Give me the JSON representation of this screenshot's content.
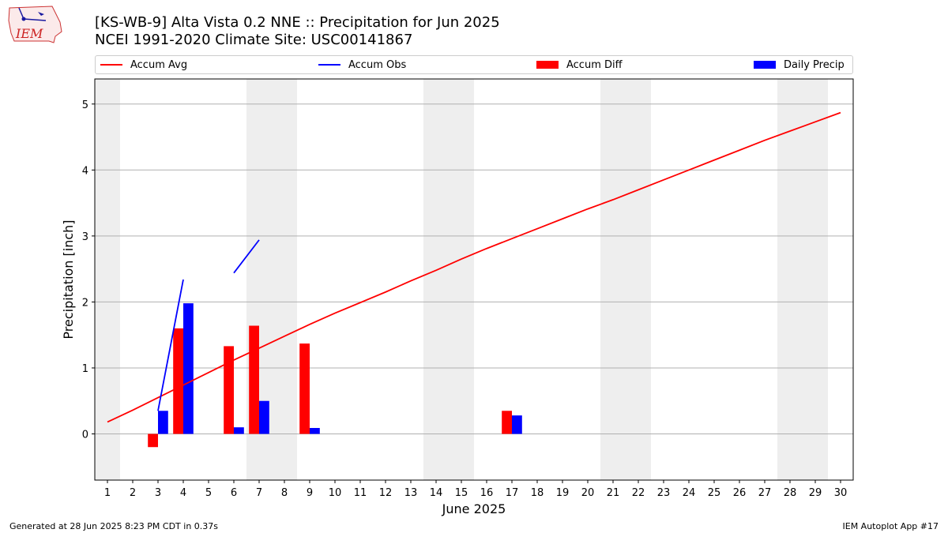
{
  "header": {
    "title_line1": "[KS-WB-9] Alta Vista 0.2 NNE :: Precipitation for Jun 2025",
    "title_line2": "NCEI 1991-2020 Climate Site: USC00141867",
    "logo_text": "IEM"
  },
  "footer": {
    "generated": "Generated at 28 Jun 2025 8:23 PM CDT in 0.37s",
    "app": "IEM Autoplot App #17"
  },
  "colors": {
    "accum_avg": "#ff0000",
    "accum_obs": "#0000ff",
    "accum_diff": "#ff0000",
    "daily_precip": "#0000ff",
    "weekend_shade": "#eeeeee",
    "grid": "#b0b0b0"
  },
  "chart_data": {
    "type": "bar",
    "xlabel": "June 2025",
    "ylabel": "Precipitation [inch]",
    "xlim": [
      0.5,
      30.5
    ],
    "ylim": [
      -0.7,
      5.38
    ],
    "yticks": [
      0,
      1,
      2,
      3,
      4,
      5
    ],
    "grid": "y",
    "legend_placement": "top",
    "legend": [
      "Accum Avg",
      "Accum Obs",
      "Accum Diff",
      "Daily Precip"
    ],
    "days": [
      1,
      2,
      3,
      4,
      5,
      6,
      7,
      8,
      9,
      10,
      11,
      12,
      13,
      14,
      15,
      16,
      17,
      18,
      19,
      20,
      21,
      22,
      23,
      24,
      25,
      26,
      27,
      28,
      29,
      30
    ],
    "weekend_days": [
      1,
      7,
      8,
      14,
      15,
      21,
      22,
      28,
      29
    ],
    "series": [
      {
        "name": "Accum Avg",
        "kind": "line",
        "x": [
          1,
          2,
          3,
          4,
          5,
          6,
          7,
          8,
          9,
          10,
          11,
          12,
          13,
          14,
          15,
          16,
          17,
          18,
          19,
          20,
          21,
          22,
          23,
          24,
          25,
          26,
          27,
          28,
          29,
          30
        ],
        "values": [
          0.18,
          0.36,
          0.55,
          0.74,
          0.93,
          1.12,
          1.3,
          1.48,
          1.66,
          1.83,
          1.99,
          2.15,
          2.32,
          2.48,
          2.65,
          2.81,
          2.96,
          3.11,
          3.26,
          3.41,
          3.55,
          3.7,
          3.85,
          4.0,
          4.15,
          4.3,
          4.45,
          4.59,
          4.73,
          4.87
        ]
      },
      {
        "name": "Accum Obs",
        "kind": "line",
        "segments": [
          {
            "x": [
              3,
              4
            ],
            "values": [
              0.35,
              2.34
            ]
          },
          {
            "x": [
              6,
              7
            ],
            "values": [
              2.44,
              2.94
            ]
          }
        ]
      },
      {
        "name": "Accum Diff",
        "kind": "bar",
        "x": [
          3,
          4,
          6,
          7,
          9,
          17
        ],
        "values": [
          -0.2,
          1.6,
          1.33,
          1.64,
          1.37,
          0.35
        ]
      },
      {
        "name": "Daily Precip",
        "kind": "bar",
        "x": [
          3,
          4,
          6,
          7,
          9,
          17
        ],
        "values": [
          0.35,
          1.98,
          0.1,
          0.5,
          0.09,
          0.28
        ]
      }
    ]
  }
}
